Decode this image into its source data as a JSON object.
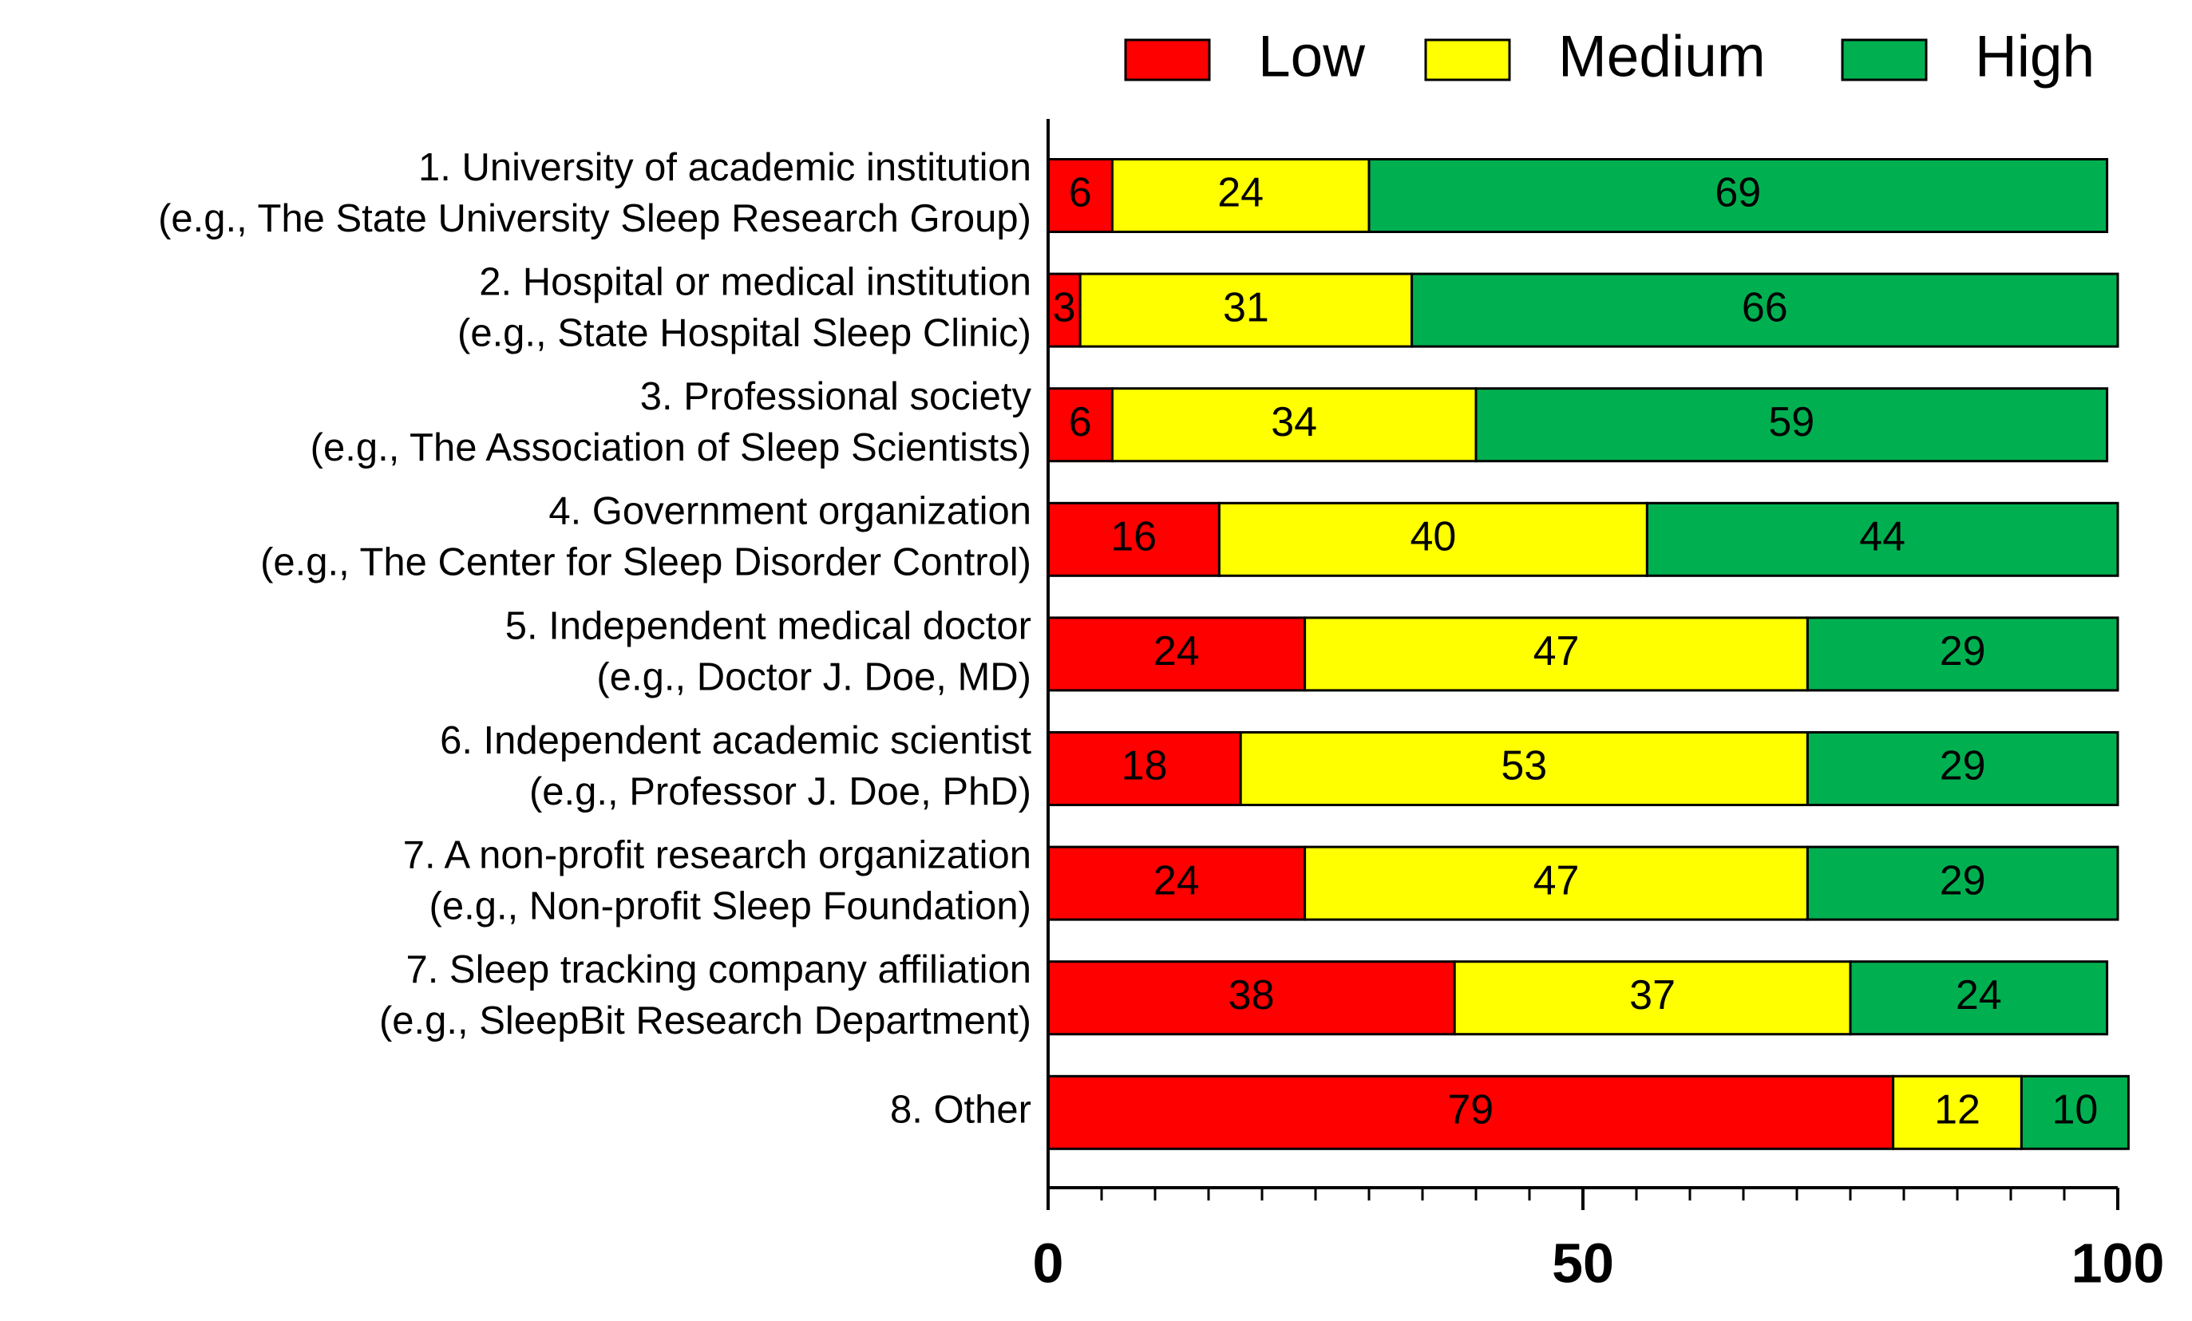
{
  "chart_data": {
    "type": "stacked-barh",
    "categories": [
      [
        "1. University of academic institution",
        "(e.g., The State University Sleep Research Group)"
      ],
      [
        "2. Hospital or medical institution",
        "(e.g., State Hospital Sleep Clinic)"
      ],
      [
        "3. Professional society",
        "(e.g., The Association of Sleep Scientists)"
      ],
      [
        "4. Government organization",
        "(e.g., The Center for Sleep Disorder Control)"
      ],
      [
        "5. Independent medical doctor",
        "(e.g., Doctor J. Doe, MD)"
      ],
      [
        "6. Independent academic scientist",
        "(e.g., Professor J. Doe, PhD)"
      ],
      [
        "7. A non-profit research organization",
        "(e.g., Non-profit Sleep Foundation)"
      ],
      [
        "7. Sleep tracking company affiliation",
        "(e.g., SleepBit Research Department)"
      ],
      [
        "8. Other"
      ]
    ],
    "series": [
      {
        "name": "Low",
        "color": "#ff0000",
        "values": [
          6,
          3,
          6,
          16,
          24,
          18,
          24,
          38,
          79
        ]
      },
      {
        "name": "Medium",
        "color": "#ffff00",
        "values": [
          24,
          31,
          34,
          40,
          47,
          53,
          47,
          37,
          12
        ]
      },
      {
        "name": "High",
        "color": "#00b050",
        "values": [
          69,
          66,
          59,
          44,
          29,
          29,
          29,
          24,
          10
        ]
      }
    ],
    "xlim": [
      0,
      100
    ],
    "xticks": [
      0,
      50,
      100
    ],
    "minor_xticks": [
      5,
      10,
      15,
      20,
      25,
      30,
      35,
      40,
      45,
      55,
      60,
      65,
      70,
      75,
      80,
      85,
      90,
      95
    ],
    "legend": "top-right"
  }
}
